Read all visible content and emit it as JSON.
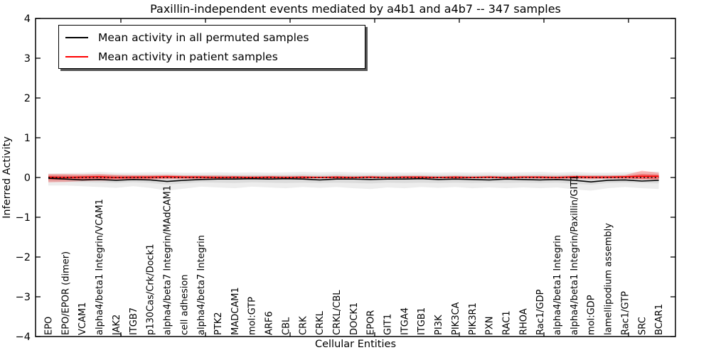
{
  "chart_data": {
    "type": "line",
    "title": "Paxillin-independent events mediated by a4b1 and a4b7 -- 347 samples",
    "xlabel": "Cellular Entities",
    "ylabel": "Inferred Activity",
    "ylim": [
      -4,
      4
    ],
    "yticks": [
      4,
      3,
      2,
      1,
      0,
      -1,
      -2,
      -3,
      -4
    ],
    "grid": false,
    "legend_position": "upper-left",
    "zero_line": {
      "value": 0,
      "style": "dotted",
      "color": "#000000"
    },
    "categories": [
      "EPO",
      "EPO/EPOR (dimer)",
      "VCAM1",
      "alpha4/beta1 Integrin/VCAM1",
      "JAK2",
      "ITGB7",
      "p130Cas/Crk/Dock1",
      "alpha4/beta7 Integrin/MAdCAM1",
      "cell adhesion",
      "alpha4/beta7 Integrin",
      "PTK2",
      "MADCAM1",
      "mol:GTP",
      "ARF6",
      "CBL",
      "CRK",
      "CRKL",
      "CRKL/CBL",
      "DOCK1",
      "EPOR",
      "GIT1",
      "ITGA4",
      "ITGB1",
      "PI3K",
      "PIK3CA",
      "PIK3R1",
      "PXN",
      "RAC1",
      "RHOA",
      "Rac1/GDP",
      "alpha4/beta1 Integrin",
      "alpha4/beta1 Integrin/Paxillin/GIT1",
      "mol:GDP",
      "lamellipodium assembly",
      "Rac1/GTP",
      "SRC",
      "BCAR1"
    ],
    "series": [
      {
        "name": "Mean activity in all permuted samples",
        "color": "#000000",
        "values": [
          -0.02,
          -0.04,
          -0.06,
          -0.05,
          -0.07,
          -0.05,
          -0.06,
          -0.1,
          -0.07,
          -0.05,
          -0.04,
          -0.04,
          -0.03,
          -0.04,
          -0.03,
          -0.04,
          -0.06,
          -0.04,
          -0.04,
          -0.05,
          -0.04,
          -0.04,
          -0.03,
          -0.05,
          -0.04,
          -0.05,
          -0.06,
          -0.04,
          -0.05,
          -0.06,
          -0.05,
          -0.07,
          -0.11,
          -0.07,
          -0.06,
          -0.09,
          -0.07
        ]
      },
      {
        "name": "Mean activity in patient samples",
        "color": "#ff0000",
        "values": [
          0.01,
          0.0,
          0.01,
          0.02,
          0.0,
          0.01,
          0.01,
          0.02,
          0.01,
          0.01,
          0.0,
          0.01,
          0.0,
          0.01,
          0.0,
          0.01,
          0.0,
          0.01,
          0.0,
          0.01,
          0.0,
          0.01,
          0.01,
          0.0,
          0.01,
          0.0,
          0.01,
          0.0,
          0.01,
          0.01,
          0.0,
          0.02,
          0.01,
          0.01,
          0.02,
          0.03,
          0.03
        ]
      }
    ],
    "bands": [
      {
        "name": "permuted-range-outer",
        "color": "#000000",
        "opacity": 0.07,
        "upper": [
          0.1,
          0.11,
          0.12,
          0.14,
          0.12,
          0.12,
          0.13,
          0.13,
          0.12,
          0.12,
          0.13,
          0.12,
          0.13,
          0.12,
          0.13,
          0.14,
          0.13,
          0.14,
          0.13,
          0.12,
          0.13,
          0.12,
          0.13,
          0.12,
          0.13,
          0.12,
          0.13,
          0.12,
          0.13,
          0.14,
          0.12,
          0.14,
          0.12,
          0.12,
          0.13,
          0.14,
          0.15
        ],
        "lower": [
          -0.2,
          -0.2,
          -0.22,
          -0.24,
          -0.26,
          -0.22,
          -0.26,
          -0.33,
          -0.28,
          -0.23,
          -0.25,
          -0.27,
          -0.23,
          -0.25,
          -0.27,
          -0.24,
          -0.26,
          -0.24,
          -0.27,
          -0.29,
          -0.25,
          -0.27,
          -0.24,
          -0.26,
          -0.24,
          -0.27,
          -0.25,
          -0.27,
          -0.25,
          -0.27,
          -0.25,
          -0.3,
          -0.33,
          -0.27,
          -0.24,
          -0.27,
          -0.29
        ]
      },
      {
        "name": "permuted-range-inner",
        "color": "#000000",
        "opacity": 0.07,
        "upper": [
          0.06,
          0.06,
          0.07,
          0.08,
          0.07,
          0.07,
          0.07,
          0.07,
          0.07,
          0.07,
          0.07,
          0.07,
          0.07,
          0.07,
          0.07,
          0.08,
          0.07,
          0.08,
          0.07,
          0.07,
          0.07,
          0.07,
          0.07,
          0.07,
          0.07,
          0.07,
          0.07,
          0.07,
          0.07,
          0.08,
          0.07,
          0.08,
          0.07,
          0.07,
          0.07,
          0.08,
          0.08
        ],
        "lower": [
          -0.1,
          -0.11,
          -0.12,
          -0.13,
          -0.14,
          -0.12,
          -0.14,
          -0.18,
          -0.15,
          -0.12,
          -0.13,
          -0.14,
          -0.12,
          -0.13,
          -0.14,
          -0.13,
          -0.14,
          -0.13,
          -0.14,
          -0.15,
          -0.13,
          -0.14,
          -0.13,
          -0.14,
          -0.13,
          -0.14,
          -0.13,
          -0.14,
          -0.13,
          -0.14,
          -0.13,
          -0.16,
          -0.18,
          -0.14,
          -0.13,
          -0.14,
          -0.15
        ]
      },
      {
        "name": "patient-range-outer",
        "color": "#ff0000",
        "opacity": 0.25,
        "upper": [
          0.09,
          0.09,
          0.08,
          0.09,
          0.07,
          0.06,
          0.06,
          0.07,
          0.05,
          0.05,
          0.05,
          0.04,
          0.04,
          0.04,
          0.04,
          0.04,
          0.03,
          0.04,
          0.03,
          0.04,
          0.03,
          0.04,
          0.04,
          0.03,
          0.04,
          0.03,
          0.04,
          0.03,
          0.04,
          0.04,
          0.04,
          0.05,
          0.05,
          0.05,
          0.06,
          0.17,
          0.12
        ],
        "lower": [
          -0.12,
          -0.11,
          -0.09,
          -0.08,
          -0.08,
          -0.06,
          -0.05,
          -0.04,
          -0.04,
          -0.04,
          -0.03,
          -0.03,
          -0.03,
          -0.03,
          -0.02,
          -0.03,
          -0.02,
          -0.03,
          -0.02,
          -0.02,
          -0.02,
          -0.02,
          -0.03,
          -0.02,
          -0.03,
          -0.02,
          -0.02,
          -0.03,
          -0.02,
          -0.03,
          -0.03,
          -0.03,
          -0.04,
          -0.03,
          -0.03,
          -0.04,
          -0.05
        ]
      },
      {
        "name": "patient-range-inner",
        "color": "#ff0000",
        "opacity": 0.3,
        "upper": [
          0.05,
          0.05,
          0.04,
          0.05,
          0.04,
          0.03,
          0.03,
          0.04,
          0.03,
          0.03,
          0.03,
          0.02,
          0.02,
          0.02,
          0.02,
          0.02,
          0.02,
          0.02,
          0.02,
          0.02,
          0.02,
          0.02,
          0.02,
          0.02,
          0.02,
          0.02,
          0.02,
          0.02,
          0.02,
          0.02,
          0.02,
          0.03,
          0.03,
          0.03,
          0.03,
          0.09,
          0.07
        ],
        "lower": [
          -0.06,
          -0.06,
          -0.05,
          -0.04,
          -0.04,
          -0.03,
          -0.03,
          -0.02,
          -0.02,
          -0.02,
          -0.02,
          -0.02,
          -0.02,
          -0.02,
          -0.01,
          -0.02,
          -0.01,
          -0.02,
          -0.01,
          -0.01,
          -0.01,
          -0.01,
          -0.02,
          -0.01,
          -0.02,
          -0.01,
          -0.01,
          -0.02,
          -0.01,
          -0.02,
          -0.02,
          -0.02,
          -0.02,
          -0.02,
          -0.02,
          -0.05,
          -0.04
        ]
      }
    ]
  }
}
